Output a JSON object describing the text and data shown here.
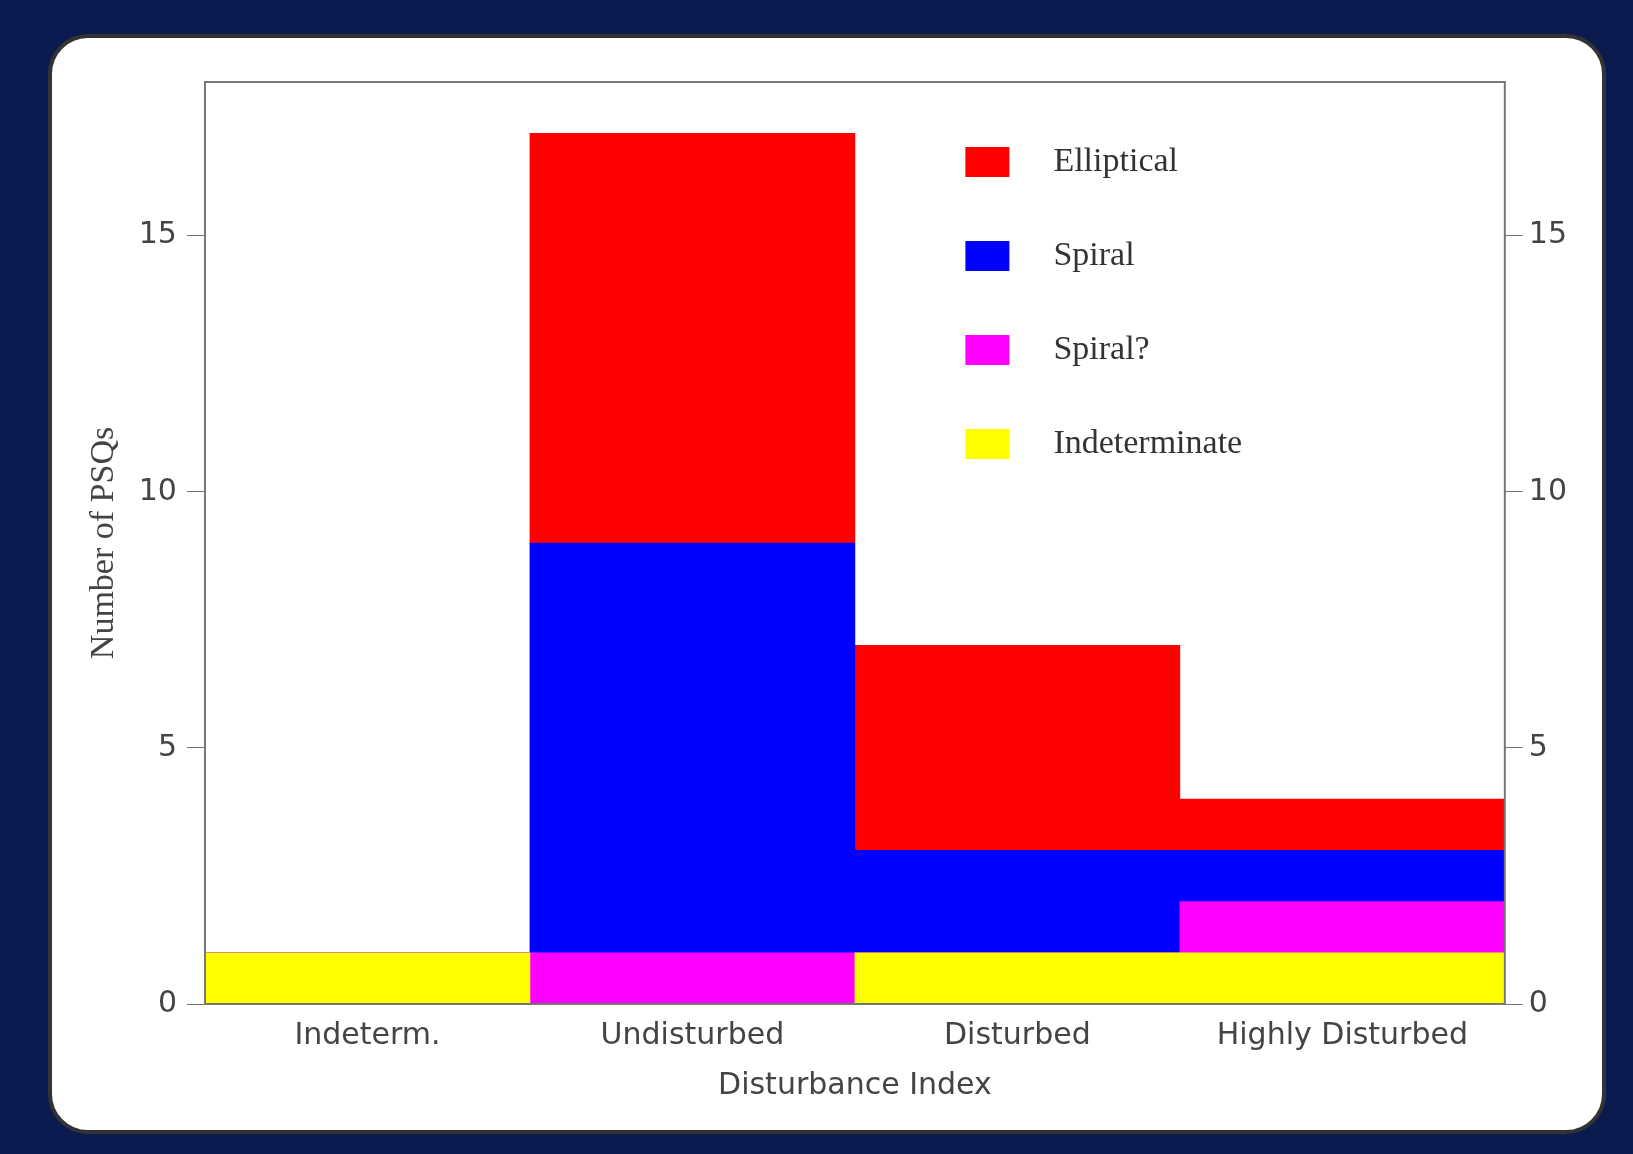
{
  "chart_data": {
    "type": "bar",
    "stacked": true,
    "xlabel": "Disturbance Index",
    "ylabel": "Number of PSQs",
    "categories": [
      "Indeterm.",
      "Undisturbed",
      "Disturbed",
      "Highly Disturbed"
    ],
    "series": [
      {
        "name": "Indeterminate",
        "color": "#ffff00",
        "values": [
          1,
          0,
          1,
          1
        ]
      },
      {
        "name": "Spiral?",
        "color": "#ff00ff",
        "values": [
          0,
          1,
          0,
          1
        ]
      },
      {
        "name": "Spiral",
        "color": "#0000ff",
        "values": [
          0,
          8,
          2,
          1
        ]
      },
      {
        "name": "Elliptical",
        "color": "#ff0000",
        "values": [
          0,
          8,
          4,
          1
        ]
      }
    ],
    "ylim": [
      0,
      18
    ],
    "yticks": [
      0,
      5,
      10,
      15
    ],
    "y2lim": [
      0,
      18
    ],
    "y2ticks": [
      0,
      5,
      10,
      15
    ],
    "grid": false,
    "legend": "top right"
  }
}
